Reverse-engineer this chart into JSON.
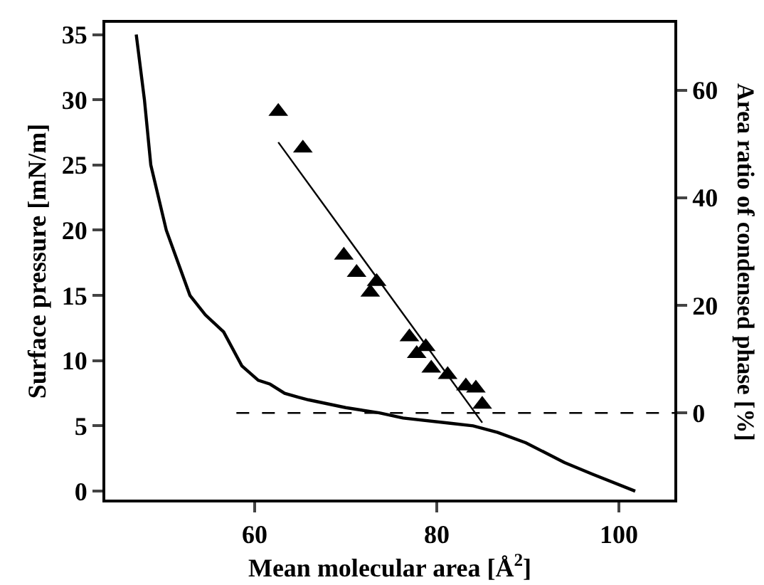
{
  "chart_data": {
    "type": "line",
    "xlabel": "Mean molecular area [Å$^{2}$]",
    "ylabel": "Surface pressure [mN/m]",
    "y2label": "Area ratio of condensed phase [%]",
    "xlim": [
      43.6,
      106.1
    ],
    "xticks": [
      60,
      80,
      100
    ],
    "ylim": [
      -0.65,
      35.9
    ],
    "yticks": [
      0,
      5,
      10,
      15,
      20,
      25,
      30,
      35
    ],
    "y2lim": [
      -16.1,
      72.5
    ],
    "y2ticks": [
      0,
      20,
      40,
      60
    ],
    "grid": false,
    "series": [
      {
        "color": "#000000",
        "line_style": "solid",
        "marker": "none",
        "x": [
          47.0,
          47.9,
          48.6,
          50.3,
          52.9,
          54.6,
          56.6,
          58.6,
          60.4,
          61.7,
          63.3,
          64.8,
          65.9,
          70.0,
          73.7,
          76.3,
          81.5,
          84.0,
          86.7,
          89.8,
          94.0,
          97.1,
          101.8
        ],
        "values": [
          35.0,
          30.0,
          25.0,
          20.0,
          15.0,
          13.5,
          12.2,
          9.6,
          8.5,
          8.2,
          7.5,
          7.2,
          7.0,
          6.4,
          6.0,
          5.6,
          5.2,
          5.0,
          4.5,
          3.7,
          2.2,
          1.3,
          0.0
        ]
      },
      {
        "type": "scatter",
        "axis": "y2",
        "color": "#000000",
        "marker": "triangle",
        "x": [
          62.6,
          65.3,
          69.8,
          71.2,
          73.4,
          72.7,
          77.0,
          78.8,
          77.8,
          79.4,
          81.2,
          83.2,
          84.3,
          85.0
        ],
        "values": [
          56.0,
          49.2,
          29.3,
          26.1,
          24.4,
          22.4,
          14.1,
          12.3,
          11.0,
          8.3,
          7.1,
          5.0,
          4.6,
          1.6
        ]
      },
      {
        "type": "line",
        "axis": "y2",
        "color": "#000000",
        "line_style": "solid",
        "marker": "none",
        "x": [
          62.6,
          85.0
        ],
        "values": [
          50.3,
          -1.8
        ]
      }
    ],
    "ref_lines": [
      {
        "axis": "y2",
        "value": 0,
        "color": "#000000",
        "line_style": "dashed"
      }
    ]
  }
}
